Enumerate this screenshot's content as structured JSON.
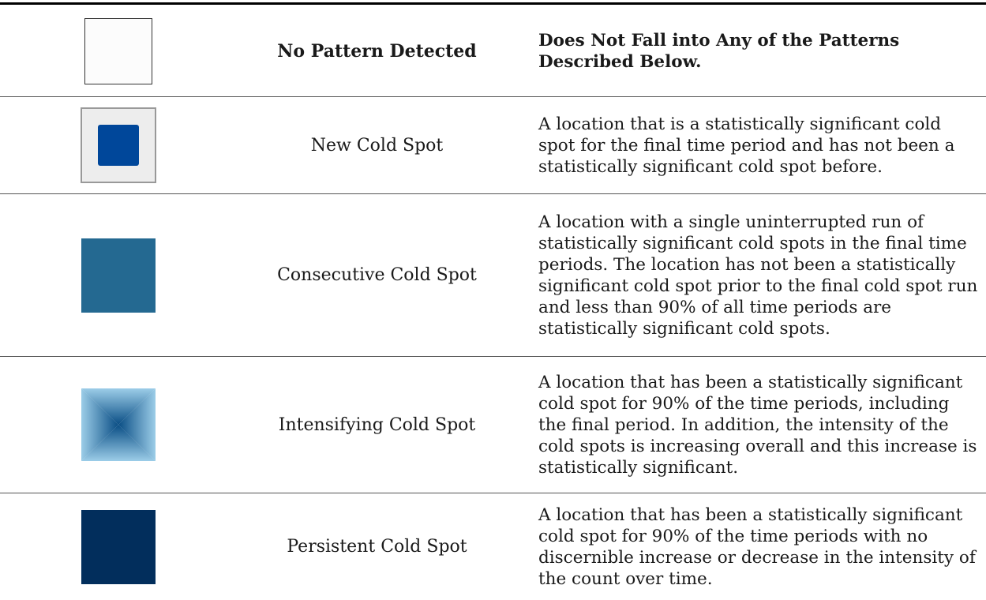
{
  "colors": {
    "new_cold_spot": "#00479a",
    "consecutive_cold_spot": "#246991",
    "intensifying_outer": "#9ccde8",
    "intensifying_inner": "#0a4e85",
    "persistent_cold_spot": "#022e5c"
  },
  "rows": [
    {
      "name": "No Pattern Detected",
      "description": "Does Not Fall into Any of the Patterns Described Below.",
      "swatch": "empty-square"
    },
    {
      "name": "New Cold Spot",
      "description": "A location that is a statistically significant cold spot for the final time period and has not been a statistically significant cold spot before.",
      "swatch": "framed-square"
    },
    {
      "name": "Consecutive Cold Spot",
      "description": "A location with a single uninterrupted run of statistically significant cold spots in the final time periods. The location has not been a statistically significant cold spot prior to the final cold spot run and less than 90% of all time periods are statistically significant cold spots.",
      "swatch": "solid-square"
    },
    {
      "name": "Intensifying Cold Spot",
      "description": "A location that has been a statistically significant cold spot for 90% of the time periods, including the final period. In addition, the intensity of the cold spots is increasing overall and this increase is statistically significant.",
      "swatch": "gradient-square"
    },
    {
      "name": "Persistent Cold Spot",
      "description": "A location that has been a statistically significant cold spot for 90% of the time periods with no discernible increase or decrease in the intensity of the count over time.",
      "swatch": "solid-square"
    }
  ]
}
